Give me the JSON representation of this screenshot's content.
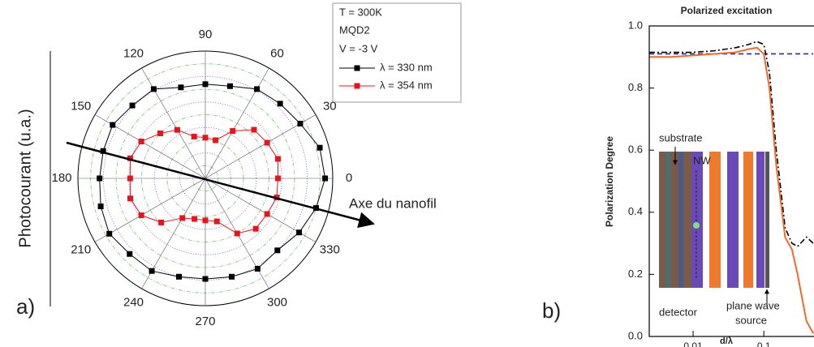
{
  "chart_data": [
    {
      "type": "polar",
      "panel_label": "a)",
      "rlabel": "Photocourant (u.a.)",
      "legend_title": [
        "T = 300K",
        "MQD2",
        "V = -3 V"
      ],
      "annotations": [
        "Axe du nanofil"
      ],
      "theta": [
        0,
        15,
        30,
        45,
        60,
        75,
        90,
        105,
        120,
        135,
        150,
        165,
        180,
        195,
        210,
        225,
        240,
        255,
        270,
        285,
        300,
        315,
        330,
        345
      ],
      "series": [
        {
          "name": "λ = 330 nm",
          "color": "#000000",
          "values": [
            9.4,
            9.3,
            8.6,
            8.3,
            8.1,
            7.5,
            7.4,
            7.4,
            8.1,
            8.1,
            8.4,
            8.3,
            8.3,
            8.5,
            8.7,
            8.4,
            8.4,
            8.0,
            7.9,
            8.0,
            8.2,
            8.0,
            8.5,
            9.0
          ]
        },
        {
          "name": "λ = 354 nm",
          "color": "#e8141c",
          "values": [
            5.7,
            5.9,
            5.6,
            5.4,
            4.3,
            3.1,
            3.2,
            3.4,
            4.4,
            5.0,
            5.8,
            6.1,
            5.9,
            6.1,
            5.8,
            4.9,
            3.6,
            3.3,
            3.3,
            3.5,
            5.0,
            5.6,
            5.6,
            5.8
          ]
        }
      ],
      "rlim": [
        0,
        10
      ],
      "rticks": [
        1,
        2,
        3,
        4,
        5,
        6,
        7,
        8,
        9
      ],
      "thetaticks": [
        0,
        30,
        60,
        90,
        120,
        150,
        180,
        210,
        240,
        270,
        300,
        330
      ],
      "grid": true
    },
    {
      "type": "line",
      "panel_label": "b)",
      "title": "Polarized excitation",
      "xlabel": "d/λ",
      "ylabel": "Polarization Degree",
      "xscale": "log",
      "inset_labels": [
        "substrate",
        "NW",
        "detector",
        "plane wave",
        "source"
      ],
      "x": [
        0.0024,
        0.005,
        0.01,
        0.02,
        0.04,
        0.06,
        0.08,
        0.1,
        0.12,
        0.15,
        0.2,
        0.25,
        0.3,
        0.4,
        0.5
      ],
      "series": [
        {
          "color": "#2a2aa8",
          "linestyle": "dashed",
          "values": [
            0.91,
            0.91,
            0.91,
            0.91,
            0.91,
            0.91,
            0.91,
            0.91,
            0.91,
            0.91,
            0.91,
            0.91,
            0.91,
            0.91,
            0.91
          ]
        },
        {
          "color": "#000000",
          "linestyle": "dashdot",
          "values": [
            0.915,
            0.915,
            0.915,
            0.92,
            0.93,
            0.94,
            0.95,
            0.94,
            0.85,
            0.6,
            0.35,
            0.3,
            0.29,
            0.32,
            0.3
          ]
        },
        {
          "color": "#f06a2c",
          "linestyle": "solid",
          "values": [
            0.9,
            0.9,
            0.905,
            0.91,
            0.915,
            0.925,
            0.93,
            0.91,
            0.8,
            0.55,
            0.32,
            0.28,
            0.2,
            0.05,
            0.01
          ]
        }
      ],
      "xlim": [
        0.0024,
        0.6
      ],
      "ylim": [
        0,
        1
      ],
      "xticks": [
        0.01,
        0.1
      ],
      "yticks": [
        {
          "value": 0,
          "label": "0.0"
        },
        0.2,
        0.4,
        0.6,
        0.8,
        {
          "value": 1,
          "label": "1.0"
        }
      ]
    }
  ]
}
